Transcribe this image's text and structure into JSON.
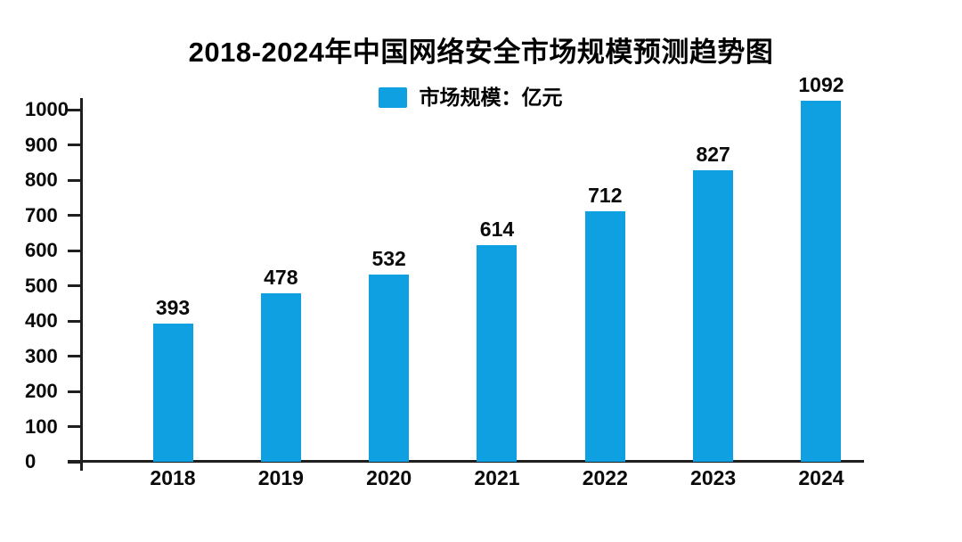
{
  "chart_data": {
    "type": "bar",
    "title": "2018-2024年中国网络安全市场规模预测趋势图",
    "legend": {
      "label": "市场规模：亿元",
      "position": "top-center"
    },
    "categories": [
      "2018",
      "2019",
      "2020",
      "2021",
      "2022",
      "2023",
      "2024"
    ],
    "series": [
      {
        "name": "市场规模：亿元",
        "values": [
          393,
          478,
          532,
          614,
          712,
          827,
          1092
        ]
      }
    ],
    "xlabel": "",
    "ylabel": "",
    "ylim": [
      0,
      1000
    ],
    "ytick_step": 100,
    "yticks": [
      0,
      100,
      200,
      300,
      400,
      500,
      600,
      700,
      800,
      900,
      1000
    ],
    "grid": false,
    "bar_color": "#0FA0E2",
    "axis_color": "#1f1f1f",
    "background_color": "#FFFFFF"
  }
}
